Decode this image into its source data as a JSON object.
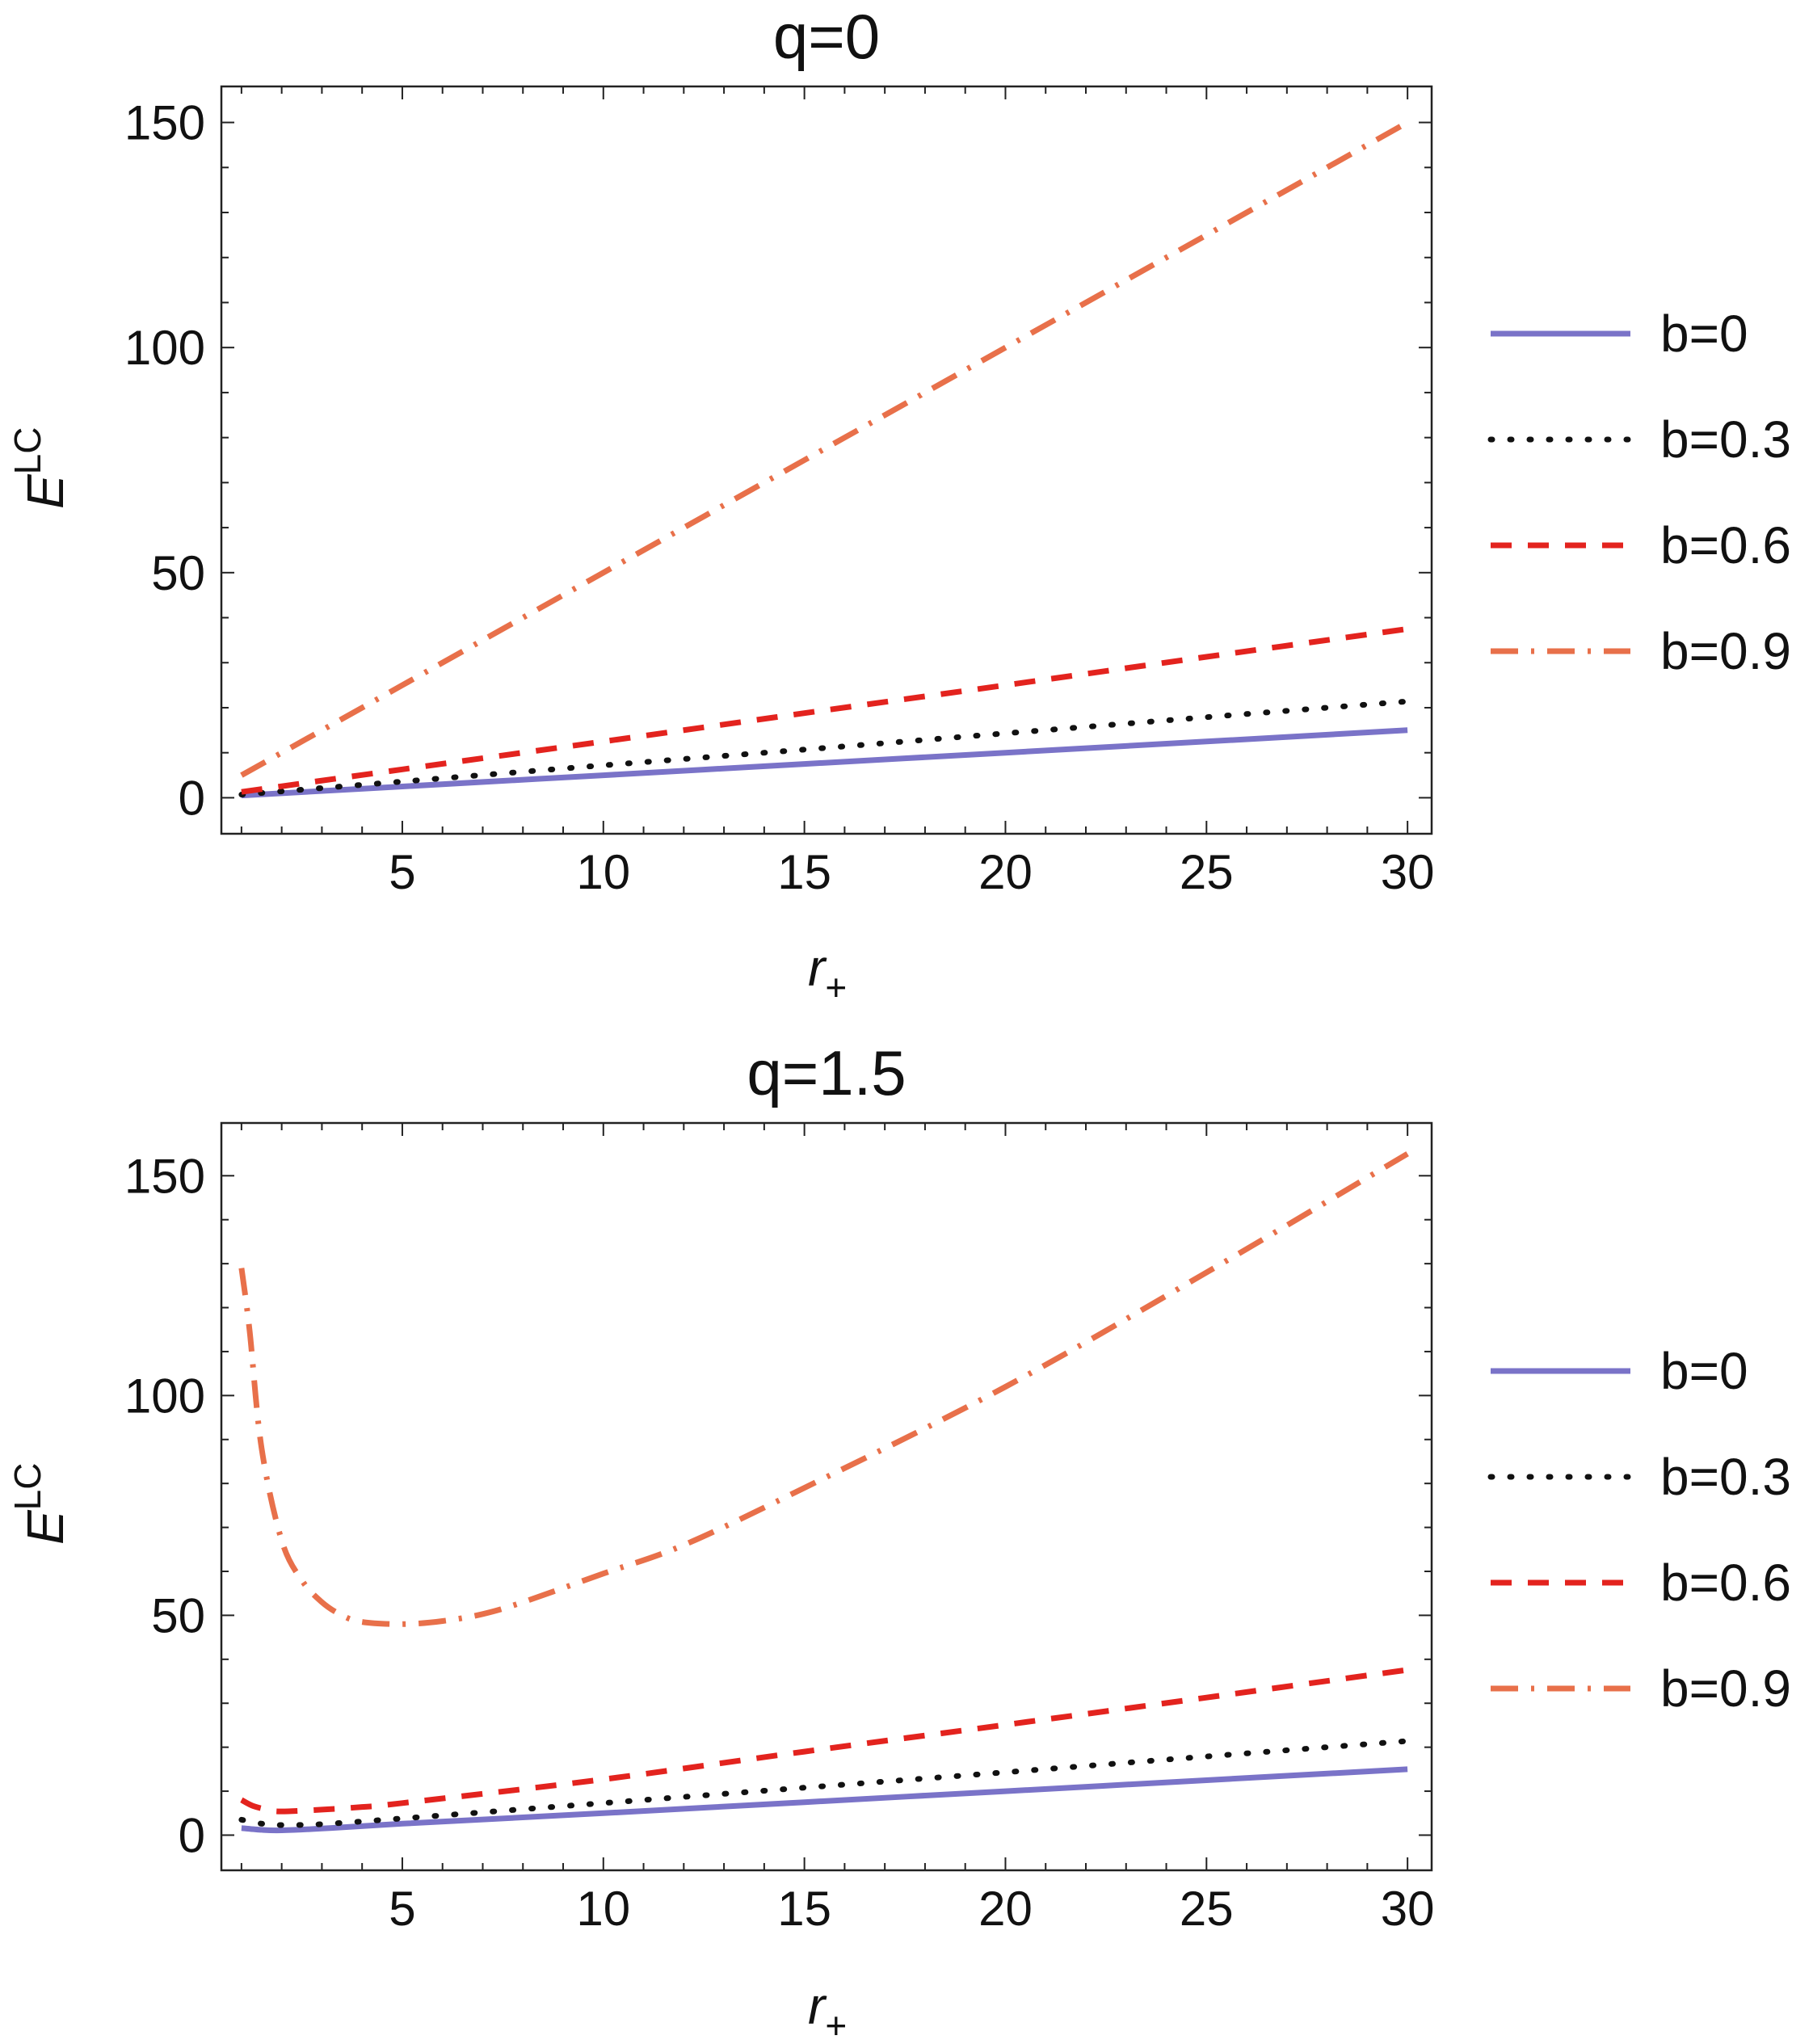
{
  "chart_data": [
    {
      "type": "line",
      "title": "q=0",
      "xlabel": "r",
      "xlabel_sub": "+",
      "ylabel": "E",
      "ylabel_sup": "LC",
      "xlim": [
        0.5,
        30.6
      ],
      "ylim": [
        -8,
        158
      ],
      "x_ticks": [
        "5",
        "10",
        "15",
        "20",
        "25",
        "30"
      ],
      "y_ticks": [
        "0",
        "50",
        "100",
        "150"
      ],
      "legend_position": "right",
      "grid": false,
      "series": [
        {
          "name": "b=0",
          "style": "solid",
          "color": "#7a73c8",
          "x": [
            1,
            5,
            10,
            15,
            20,
            25,
            30
          ],
          "y": [
            0.5,
            2.5,
            5,
            7.5,
            10,
            12.5,
            15
          ]
        },
        {
          "name": "b=0.3",
          "style": "dotted",
          "color": "#111111",
          "x": [
            1,
            5,
            10,
            15,
            20,
            25,
            30
          ],
          "y": [
            0.7,
            3.6,
            7.2,
            10.7,
            14.3,
            17.9,
            21.4
          ]
        },
        {
          "name": "b=0.6",
          "style": "dashed",
          "color": "#e3231e",
          "x": [
            1,
            5,
            10,
            15,
            20,
            25,
            30
          ],
          "y": [
            1.3,
            6.3,
            12.5,
            18.8,
            25,
            31.3,
            37.5
          ]
        },
        {
          "name": "b=0.9",
          "style": "dashdot",
          "color": "#e8704a",
          "x": [
            1,
            5,
            10,
            15,
            20,
            25,
            30
          ],
          "y": [
            5,
            25,
            50,
            75,
            100,
            125,
            150
          ]
        }
      ]
    },
    {
      "type": "line",
      "title": "q=1.5",
      "xlabel": "r",
      "xlabel_sub": "+",
      "ylabel": "E",
      "ylabel_sup": "LC",
      "xlim": [
        0.5,
        30.6
      ],
      "ylim": [
        -8,
        162
      ],
      "x_ticks": [
        "5",
        "10",
        "15",
        "20",
        "25",
        "30"
      ],
      "y_ticks": [
        "0",
        "50",
        "100",
        "150"
      ],
      "legend_position": "right",
      "grid": false,
      "series": [
        {
          "name": "b=0",
          "style": "solid",
          "color": "#7a73c8",
          "x": [
            1,
            1.5,
            2,
            3,
            5,
            10,
            15,
            20,
            25,
            30
          ],
          "y": [
            1.6,
            1.2,
            1.1,
            1.5,
            2.6,
            5,
            7.5,
            10,
            12.5,
            15
          ]
        },
        {
          "name": "b=0.3",
          "style": "dotted",
          "color": "#111111",
          "x": [
            1,
            1.5,
            2,
            3,
            5,
            10,
            15,
            20,
            25,
            30
          ],
          "y": [
            3.5,
            2.6,
            2.3,
            2.5,
            3.8,
            7.3,
            10.8,
            14.3,
            17.9,
            21.4
          ]
        },
        {
          "name": "b=0.6",
          "style": "dashed",
          "color": "#e3231e",
          "x": [
            1,
            1.3,
            1.7,
            2,
            3,
            4,
            5,
            10,
            15,
            20,
            25,
            30
          ],
          "y": [
            8,
            6.6,
            5.7,
            5.4,
            5.8,
            6.4,
            7.3,
            12.7,
            19,
            25.1,
            31.3,
            37.6
          ]
        },
        {
          "name": "b=0.9",
          "style": "dashdot",
          "color": "#e8704a",
          "x": [
            1,
            1.2,
            1.5,
            2,
            2.5,
            3,
            3.5,
            4,
            5,
            6,
            7,
            8,
            10,
            12,
            15,
            20,
            25,
            30
          ],
          "y": [
            129,
            115,
            88,
            67,
            58,
            53,
            50,
            48.5,
            48,
            48.7,
            50.3,
            53,
            59.5,
            66,
            79,
            102,
            128,
            155
          ]
        }
      ]
    }
  ]
}
